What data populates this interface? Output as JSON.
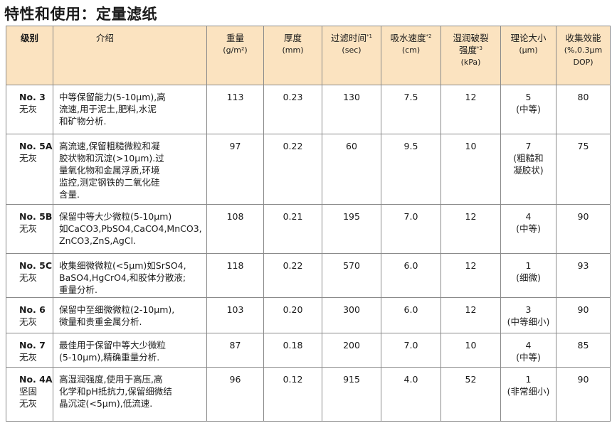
{
  "title": "特性和使用：定量滤纸",
  "headers": {
    "grade": "级别",
    "intro": "介绍",
    "weight": "重量",
    "weight_unit": "(g/m²)",
    "thickness": "厚度",
    "thickness_unit": "(mm)",
    "filter_time": "过滤时间",
    "filter_time_note": "*1",
    "filter_time_unit": "(sec)",
    "absorb": "吸水速度",
    "absorb_note": "*2",
    "absorb_unit": "(cm)",
    "wet_burst_1": "湿润破裂",
    "wet_burst_2": "强度",
    "wet_burst_note": "*3",
    "wet_burst_unit": "(kPa)",
    "theory_size": "理论大小",
    "theory_size_unit": "(μm)",
    "efficiency": "收集效能",
    "efficiency_unit_1": "(%,0.3μm",
    "efficiency_unit_2": "DOP)"
  },
  "rows": [
    {
      "grade": "No. 3",
      "grade_sub": "无灰",
      "grade_sub2": "",
      "desc": [
        "中等保留能力(5-10μm),高",
        "流速,用于泥土,肥料,水泥",
        "和矿物分析."
      ],
      "weight": "113",
      "thickness": "0.23",
      "time": "130",
      "absorb": "7.5",
      "burst": "12",
      "size": "5",
      "size_note": [
        "(中等)"
      ],
      "eff": "80"
    },
    {
      "grade": "No. 5A",
      "grade_sub": "无灰",
      "grade_sub2": "",
      "desc": [
        "高流速,保留粗糙微粒和凝",
        "胶状物和沉淀(>10μm).过",
        "量氧化物和金属浮质,环境",
        "监控,测定钢铁的二氧化硅",
        "含量."
      ],
      "weight": "97",
      "thickness": "0.22",
      "time": "60",
      "absorb": "9.5",
      "burst": "10",
      "size": "7",
      "size_note": [
        "(粗糙和",
        "凝胶状)"
      ],
      "eff": "75"
    },
    {
      "grade": "No. 5B",
      "grade_sub": "无灰",
      "grade_sub2": "",
      "desc": [
        "保留中等大少微粒(5-10μm)",
        "如CaCO3,PbSO4,CaCO4,MnCO3,",
        "ZnCO3,ZnS,AgCl."
      ],
      "weight": "108",
      "thickness": "0.21",
      "time": "195",
      "absorb": "7.0",
      "burst": "12",
      "size": "4",
      "size_note": [
        "(中等)"
      ],
      "eff": "90"
    },
    {
      "grade": "No. 5C",
      "grade_sub": "无灰",
      "grade_sub2": "",
      "desc": [
        "收集细微微粒(<5μm)如SrSO4,",
        "BaSO4,HgCrO4,和胶体分散液;",
        "重量分析."
      ],
      "weight": "118",
      "thickness": "0.22",
      "time": "570",
      "absorb": "6.0",
      "burst": "12",
      "size": "1",
      "size_note": [
        "(细微)"
      ],
      "eff": "93"
    },
    {
      "grade": "No. 6",
      "grade_sub": "无灰",
      "grade_sub2": "",
      "desc": [
        "保留中至细微微粒(2-10μm),",
        "微量和贵重金属分析."
      ],
      "weight": "103",
      "thickness": "0.20",
      "time": "300",
      "absorb": "6.0",
      "burst": "12",
      "size": "3",
      "size_note": [
        "(中等细小)"
      ],
      "eff": "90"
    },
    {
      "grade": "No. 7",
      "grade_sub": "无灰",
      "grade_sub2": "",
      "desc": [
        "最佳用于保留中等大少微粒",
        "(5-10μm),精确重量分析."
      ],
      "weight": "87",
      "thickness": "0.18",
      "time": "200",
      "absorb": "7.0",
      "burst": "10",
      "size": "4",
      "size_note": [
        "(中等)"
      ],
      "eff": "85"
    },
    {
      "grade": "No. 4A",
      "grade_sub": "坚固",
      "grade_sub2": "无灰",
      "desc": [
        "高湿润强度,使用于高压,高",
        "化学和pH抵抗力,保留细微结",
        "晶沉淀(<5μm),低流速."
      ],
      "weight": "96",
      "thickness": "0.12",
      "time": "915",
      "absorb": "4.0",
      "burst": "52",
      "size": "1",
      "size_note": [
        "(非常细小)"
      ],
      "eff": "90"
    }
  ]
}
